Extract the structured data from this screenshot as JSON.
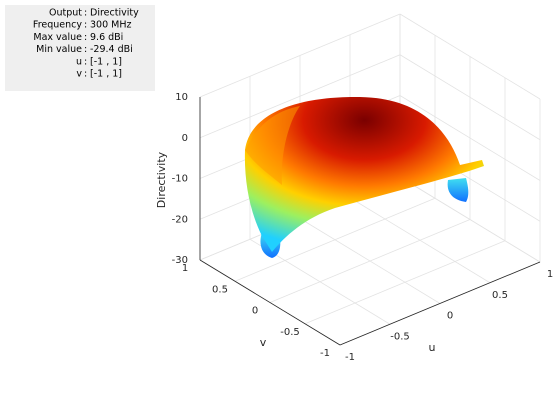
{
  "info": [
    {
      "label": "Output",
      "value": "Directivity"
    },
    {
      "label": "Frequency",
      "value": "300 MHz"
    },
    {
      "label": "Max value",
      "value": "9.6 dBi"
    },
    {
      "label": "Min value",
      "value": "-29.4 dBi"
    },
    {
      "label": "u",
      "value": "[-1 , 1]"
    },
    {
      "label": "v",
      "value": "[-1 , 1]"
    }
  ],
  "chart_data": {
    "type": "surface",
    "xlabel": "u",
    "ylabel": "v",
    "zlabel": "Directivity",
    "xlim": [
      -1,
      1
    ],
    "ylim": [
      -1,
      1
    ],
    "zlim": [
      -30,
      10
    ],
    "xticks": [
      -1,
      -0.5,
      0,
      0.5,
      1
    ],
    "yticks": [
      -1,
      -0.5,
      0,
      0.5,
      1
    ],
    "zticks": [
      -30,
      -20,
      -10,
      0,
      10
    ],
    "grid": true
  }
}
